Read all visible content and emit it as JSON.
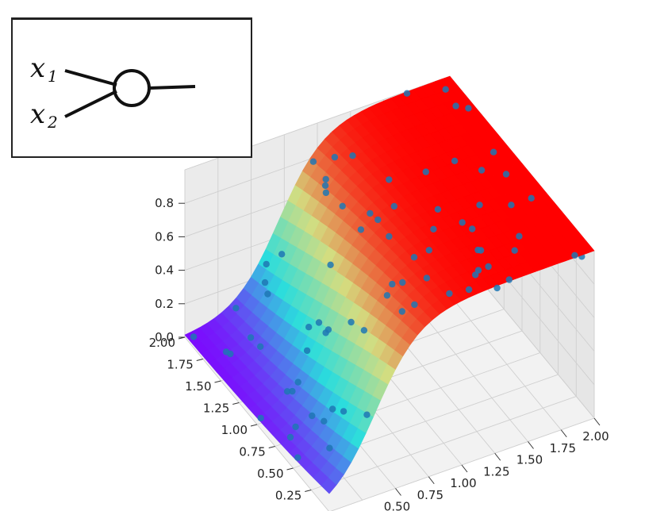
{
  "chart_data": {
    "type": "surface3d",
    "surface": "sigmoid",
    "colormap": "rainbow",
    "title": "",
    "xlabel": "",
    "ylabel": "",
    "zlabel": "",
    "x_ticks": [
      "0.50",
      "0.75",
      "1.00",
      "1.25",
      "1.50",
      "1.75",
      "2.00"
    ],
    "y_ticks": [
      "0.25",
      "0.50",
      "0.75",
      "1.00",
      "1.25",
      "1.50",
      "1.75",
      "2.00"
    ],
    "z_ticks": [
      "0.0",
      "0.2",
      "0.4",
      "0.6",
      "0.8"
    ],
    "xlim": [
      0.0,
      2.0
    ],
    "ylim": [
      0.0,
      2.0
    ],
    "zlim": [
      0.0,
      1.0
    ],
    "grid": true,
    "scatter_color": "#1f77b4",
    "surface_colors": [
      "#8000ff",
      "#2adddd",
      "#d4dd80",
      "#ff0000"
    ]
  },
  "inset": {
    "inputs": [
      "x1",
      "x2"
    ]
  }
}
